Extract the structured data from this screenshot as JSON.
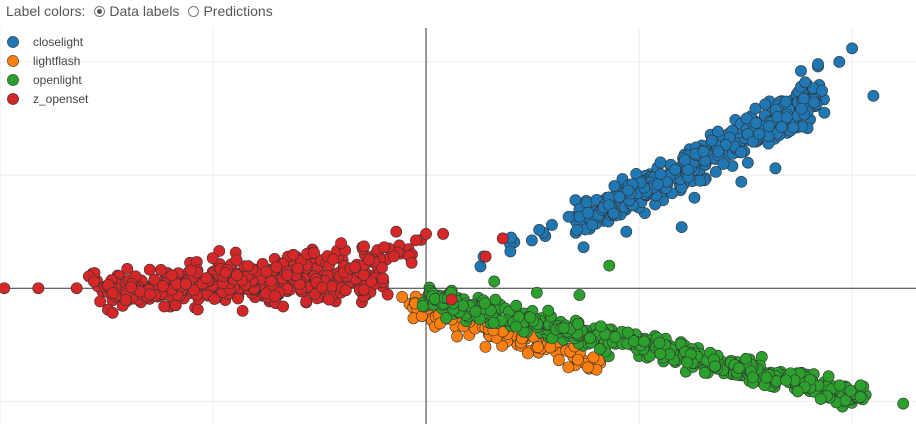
{
  "controls": {
    "label": "Label colors:",
    "options": [
      {
        "label": "Data labels",
        "selected": true
      },
      {
        "label": "Predictions",
        "selected": false
      }
    ]
  },
  "chart_data": {
    "type": "scatter",
    "title": "",
    "xlabel": "",
    "ylabel": "",
    "xlim": [
      -1.0,
      1.15
    ],
    "ylim": [
      -0.6,
      1.15
    ],
    "grid": true,
    "axes_through_origin": true,
    "legend_position": "top-left",
    "series": [
      {
        "name": "closelight",
        "color": "#1f77b4",
        "clusters": [
          {
            "x_range": [
              0.35,
              0.92
            ],
            "y_from": 0.28,
            "y_to": 0.84,
            "spread": 0.04,
            "count": 430
          },
          {
            "x_range": [
              0.05,
              0.35
            ],
            "y_from": 0.06,
            "y_to": 0.3,
            "spread": 0.02,
            "count": 12
          }
        ],
        "outliers": [
          [
            0.6,
            0.27
          ],
          [
            0.74,
            0.47
          ],
          [
            0.82,
            0.53
          ],
          [
            0.63,
            0.4
          ],
          [
            0.88,
            0.89
          ],
          [
            0.88,
            0.96
          ],
          [
            0.89,
            0.91
          ],
          [
            0.92,
            0.98
          ],
          [
            0.92,
            0.99
          ],
          [
            0.97,
            1.0
          ],
          [
            1.05,
            0.85
          ],
          [
            1.0,
            1.06
          ],
          [
            0.47,
            0.25
          ]
        ]
      },
      {
        "name": "lightflash",
        "color": "#ff7f0e",
        "clusters": [
          {
            "x_range": [
              -0.03,
              0.4
            ],
            "y_from": -0.07,
            "y_to": -0.34,
            "spread": 0.025,
            "count": 130
          }
        ],
        "outliers": [
          [
            0.4,
            -0.36
          ],
          [
            0.38,
            -0.35
          ]
        ]
      },
      {
        "name": "openlight",
        "color": "#2ca02c",
        "clusters": [
          {
            "x_range": [
              0.0,
              1.03
            ],
            "y_from": -0.04,
            "y_to": -0.48,
            "spread": 0.025,
            "count": 540
          }
        ],
        "outliers": [
          [
            0.43,
            0.1
          ],
          [
            0.16,
            0.03
          ],
          [
            0.26,
            -0.02
          ],
          [
            0.36,
            -0.03
          ],
          [
            1.12,
            -0.51
          ]
        ]
      },
      {
        "name": "z_openset",
        "color": "#d62728",
        "clusters": [
          {
            "x_range": [
              -0.78,
              -0.1
            ],
            "y_from": -0.005,
            "y_to": 0.04,
            "spread": 0.04,
            "count": 420
          },
          {
            "x_range": [
              -0.55,
              -0.02
            ],
            "y_from": 0.06,
            "y_to": 0.16,
            "spread": 0.03,
            "count": 90
          }
        ],
        "outliers": [
          [
            -0.99,
            0.0
          ],
          [
            -0.91,
            0.0
          ],
          [
            -0.82,
            0.0
          ],
          [
            0.0,
            0.24
          ],
          [
            0.04,
            0.24
          ],
          [
            -0.07,
            0.25
          ],
          [
            0.18,
            0.22
          ],
          [
            0.14,
            0.14
          ],
          [
            0.06,
            -0.05
          ]
        ]
      }
    ]
  }
}
